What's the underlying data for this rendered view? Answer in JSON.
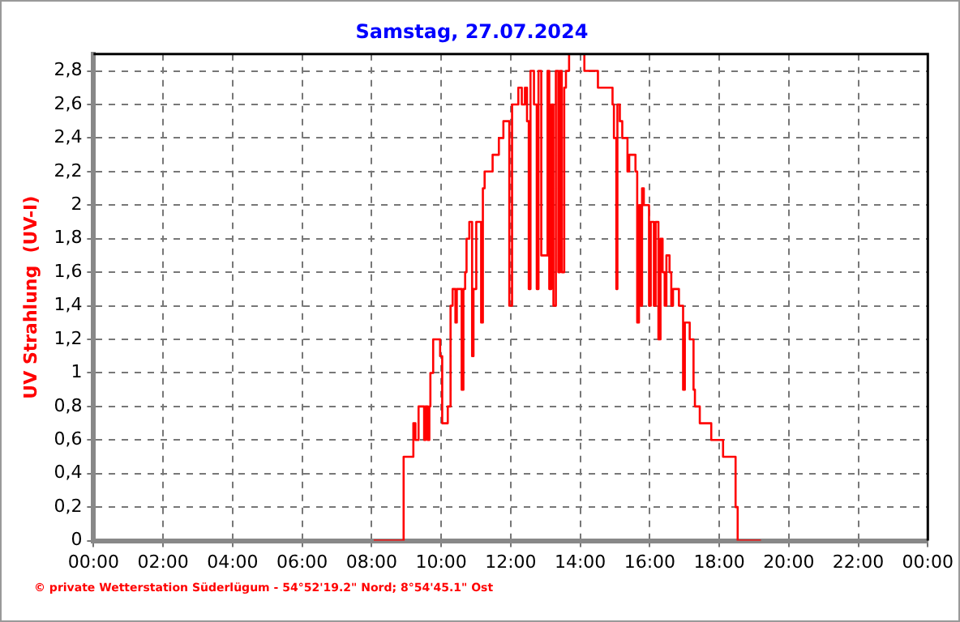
{
  "chart_data": {
    "type": "step",
    "title": "Samstag, 27.07.2024",
    "ylabel": "UV Strahlung  (UV-I)",
    "annotations": [
      "© private Wetterstation Süderlügum - 54°52'19.2\" Nord; 8°54'45.1\" Ost"
    ],
    "series": [
      {
        "color": "#ff0000",
        "x": [
          8.06,
          8.92,
          9.2,
          9.26,
          9.35,
          9.51,
          9.55,
          9.61,
          9.66,
          9.69,
          9.77,
          9.97,
          10.03,
          10.19,
          10.27,
          10.33,
          10.41,
          10.45,
          10.59,
          10.64,
          10.69,
          10.73,
          10.81,
          10.89,
          10.93,
          11.01,
          11.15,
          11.2,
          11.25,
          11.48,
          11.66,
          11.79,
          11.96,
          12.04,
          12.22,
          12.32,
          12.41,
          12.47,
          12.52,
          12.57,
          12.67,
          12.75,
          12.8,
          12.88,
          13.06,
          13.11,
          13.17,
          13.23,
          13.3,
          13.37,
          13.42,
          13.47,
          13.54,
          13.59,
          13.68,
          14.12,
          14.51,
          14.93,
          14.97,
          15.04,
          15.07,
          15.14,
          15.21,
          15.36,
          15.41,
          15.59,
          15.64,
          15.69,
          15.73,
          15.78,
          15.83,
          15.98,
          16.03,
          16.12,
          16.17,
          16.25,
          16.31,
          16.37,
          16.43,
          16.48,
          16.57,
          16.62,
          16.67,
          16.84,
          16.96,
          17.01,
          17.15,
          17.26,
          17.3,
          17.44,
          17.77,
          18.11,
          18.47,
          18.53,
          19.2
        ],
        "values": [
          0,
          0.5,
          0.7,
          0.6,
          0.8,
          0.6,
          0.8,
          0.6,
          0.8,
          1.0,
          1.2,
          1.1,
          0.7,
          0.8,
          1.4,
          1.5,
          1.3,
          1.5,
          0.9,
          1.5,
          1.6,
          1.8,
          1.9,
          1.1,
          1.5,
          1.9,
          1.3,
          2.1,
          2.2,
          2.3,
          2.4,
          2.5,
          1.4,
          2.6,
          2.7,
          2.6,
          2.7,
          2.5,
          1.5,
          2.8,
          2.6,
          1.5,
          2.8,
          1.7,
          2.8,
          1.5,
          2.6,
          1.4,
          2.8,
          1.6,
          2.8,
          1.6,
          2.7,
          2.8,
          2.9,
          2.8,
          2.7,
          2.6,
          2.4,
          1.5,
          2.6,
          2.5,
          2.4,
          2.2,
          2.3,
          2.2,
          1.3,
          2.0,
          1.4,
          2.1,
          2.0,
          1.4,
          1.9,
          1.4,
          1.9,
          1.2,
          1.8,
          1.6,
          1.4,
          1.7,
          1.6,
          1.4,
          1.5,
          1.4,
          0.9,
          1.3,
          1.2,
          0.9,
          0.8,
          0.7,
          0.6,
          0.5,
          0.2,
          0,
          0
        ]
      }
    ],
    "xlim": [
      0,
      24
    ],
    "xticks": [
      {
        "value": 0,
        "label": "00:00"
      },
      {
        "value": 2,
        "label": "02:00"
      },
      {
        "value": 4,
        "label": "04:00"
      },
      {
        "value": 6,
        "label": "06:00"
      },
      {
        "value": 8,
        "label": "08:00"
      },
      {
        "value": 10,
        "label": "10:00"
      },
      {
        "value": 12,
        "label": "12:00"
      },
      {
        "value": 14,
        "label": "14:00"
      },
      {
        "value": 16,
        "label": "16:00"
      },
      {
        "value": 18,
        "label": "18:00"
      },
      {
        "value": 20,
        "label": "20:00"
      },
      {
        "value": 22,
        "label": "22:00"
      },
      {
        "value": 24,
        "label": "00:00"
      }
    ],
    "ylim": [
      0,
      2.9
    ],
    "yticks": [
      0,
      {
        "value": 0.2,
        "label": "0,2"
      },
      {
        "value": 0.4,
        "label": "0,4"
      },
      {
        "value": 0.6,
        "label": "0,6"
      },
      {
        "value": 0.8,
        "label": "0,8"
      },
      1,
      {
        "value": 1.2,
        "label": "1,2"
      },
      {
        "value": 1.4,
        "label": "1,4"
      },
      {
        "value": 1.6,
        "label": "1,6"
      },
      {
        "value": 1.8,
        "label": "1,8"
      },
      2,
      {
        "value": 2.2,
        "label": "2,2"
      },
      {
        "value": 2.4,
        "label": "2,4"
      },
      {
        "value": 2.6,
        "label": "2,6"
      },
      {
        "value": 2.8,
        "label": "2,8"
      }
    ],
    "grid": true,
    "legend": false,
    "marker": "none",
    "line_style": "solid"
  }
}
